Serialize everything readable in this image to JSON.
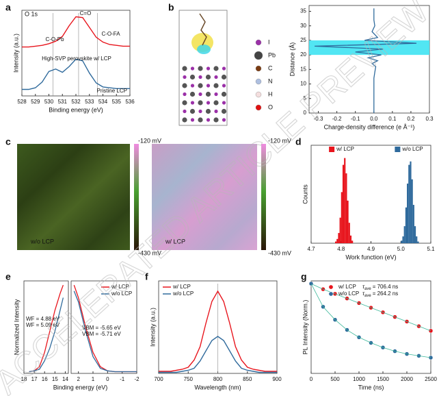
{
  "watermark": "ACCELERATED ARTICLE PREVIEW",
  "chart_data": [
    {
      "panel": "a",
      "type": "line",
      "title": "O 1s",
      "xlabel": "Binding energy (eV)",
      "ylabel": "Intensity (a.u.)",
      "xlim": [
        528,
        536
      ],
      "xticks": [
        528,
        529,
        530,
        531,
        532,
        533,
        534,
        535,
        536
      ],
      "ylim": [
        0,
        1.05
      ],
      "x": [
        528,
        528.5,
        529,
        529.5,
        530,
        530.5,
        531,
        531.5,
        532,
        532.5,
        533,
        533.5,
        534,
        534.5,
        535,
        535.5,
        536
      ],
      "series": [
        {
          "color": "#e8141c",
          "values": [
            0.6,
            0.6,
            0.61,
            0.62,
            0.64,
            0.67,
            0.73,
            0.86,
            0.97,
            0.96,
            0.84,
            0.72,
            0.66,
            0.63,
            0.62,
            0.61,
            0.61
          ]
        },
        {
          "color": "#2f6a9c",
          "values": [
            0.08,
            0.08,
            0.1,
            0.17,
            0.3,
            0.33,
            0.29,
            0.36,
            0.45,
            0.43,
            0.28,
            0.16,
            0.11,
            0.1,
            0.09,
            0.09,
            0.09
          ]
        }
      ],
      "markers": [
        530.3,
        532.2,
        533.6
      ],
      "annotations": [
        "C=O",
        "C-O-Pb",
        "C-O-FA",
        "High-SVP perovskite w/ LCP",
        "Pristine LCP"
      ]
    },
    {
      "panel": "b",
      "type": "profile",
      "structure_legend": [
        {
          "label": "I",
          "color": "#9b30a8"
        },
        {
          "label": "Pb",
          "color": "#444444"
        },
        {
          "label": "C",
          "color": "#7a3b12"
        },
        {
          "label": "N",
          "color": "#aebfe0"
        },
        {
          "label": "H",
          "color": "#f4dede"
        },
        {
          "label": "O",
          "color": "#e01010"
        }
      ],
      "xlabel": "Charge-density difference (e Å⁻¹)",
      "ylabel": "Distance (Å)",
      "xlim": [
        -0.35,
        0.3
      ],
      "xticks": [
        -0.3,
        -0.2,
        -0.1,
        {
          "value": 0,
          "label": "0.0"
        },
        0.1,
        0.2,
        0.3
      ],
      "ylim": [
        0,
        37
      ],
      "yticks": [
        0,
        5,
        10,
        15,
        20,
        25,
        30,
        35
      ],
      "band": [
        20,
        25
      ],
      "band_color": "#3fe3f2",
      "color": "#2f6a9c",
      "distance": [
        0,
        2,
        4,
        6,
        8,
        10,
        12,
        14,
        16,
        17,
        18,
        19,
        20,
        21,
        22,
        23,
        24,
        25,
        26,
        28,
        30,
        32,
        34,
        36
      ],
      "values": [
        0,
        0,
        0,
        0,
        0,
        0,
        0,
        0.005,
        0.01,
        -0.01,
        0.02,
        -0.03,
        0.04,
        -0.1,
        0.05,
        -0.32,
        0.23,
        -0.05,
        0.02,
        -0.01,
        0.005,
        0,
        0,
        0
      ]
    },
    {
      "panel": "c",
      "type": "map",
      "maps": [
        {
          "label": "w/o LCP",
          "top": "-120 mV",
          "bottom": "-430 mV"
        },
        {
          "label": "w/ LCP",
          "top": "-120 mV",
          "bottom": "-430 mV"
        }
      ]
    },
    {
      "panel": "d",
      "type": "histogram",
      "xlabel": "Work function (eV)",
      "ylabel": "Counts",
      "xlim": [
        4.7,
        5.1
      ],
      "xticks": [
        4.7,
        4.8,
        4.9,
        {
          "value": 5,
          "label": "5.0"
        },
        5.1
      ],
      "ylim": [
        0,
        115
      ],
      "series": [
        {
          "name": "w/ LCP",
          "color": "#e8141c",
          "bins": [
            4.78,
            4.785,
            4.79,
            4.795,
            4.8,
            4.805,
            4.81,
            4.815,
            4.82,
            4.825,
            4.83,
            4.835,
            4.84
          ],
          "values": [
            2,
            5,
            12,
            30,
            60,
            92,
            100,
            82,
            50,
            24,
            9,
            3
          ]
        },
        {
          "name": "w/o LCP",
          "color": "#2f6a9c",
          "bins": [
            5.0,
            5.005,
            5.01,
            5.015,
            5.02,
            5.025,
            5.03,
            5.035,
            5.04,
            5.045,
            5.05,
            5.055,
            5.06
          ],
          "values": [
            3,
            8,
            20,
            42,
            70,
            92,
            96,
            75,
            45,
            20,
            8,
            2
          ]
        }
      ]
    },
    {
      "panel": "e",
      "type": "line",
      "xlabel": "Binding energy (eV)",
      "ylabel": "Normalized Intensity",
      "ylim": [
        0,
        1.1
      ],
      "legend": "upper right",
      "segments": [
        {
          "xlim": [
            18,
            13.7
          ],
          "xticks": [
            18,
            17,
            16,
            15,
            14
          ],
          "x": [
            17.5,
            17,
            16.5,
            16,
            15.5,
            15,
            14.5,
            14.2
          ]
        },
        {
          "xlim": [
            2.5,
            -2
          ],
          "xticks": [
            2,
            1,
            0,
            -1,
            -2
          ],
          "x": [
            2.3,
            2,
            1.5,
            1,
            0.5,
            0,
            -0.5,
            -1,
            -2
          ]
        }
      ],
      "series": [
        {
          "name": "w/ LCP",
          "color": "#e8141c",
          "segments": [
            [
              0.02,
              0.03,
              0.08,
              0.25,
              0.5,
              0.75,
              0.95,
              1.05
            ],
            [
              1.05,
              0.9,
              0.55,
              0.25,
              0.08,
              0.03,
              0.02,
              0.02,
              0.02
            ]
          ]
        },
        {
          "name": "w/o LCP",
          "color": "#2f6a9c",
          "segments": [
            [
              0.02,
              0.03,
              0.05,
              0.15,
              0.3,
              0.5,
              0.75,
              0.9
            ],
            [
              0.98,
              0.85,
              0.5,
              0.2,
              0.06,
              0.03,
              0.02,
              0.02,
              0.02
            ]
          ]
        }
      ],
      "annotations": [
        {
          "text": "WF = 4.88 eV",
          "color": "#e8141c"
        },
        {
          "text": "WF = 5.09 eV",
          "color": "#2f6a9c"
        },
        {
          "text": "VBM = -5.65 eV",
          "color": "#e8141c"
        },
        {
          "text": "VBM = -5.71 eV",
          "color": "#2f6a9c"
        }
      ]
    },
    {
      "panel": "f",
      "type": "line",
      "xlabel": "Wavelength (nm)",
      "ylabel": "Intensity (a.u.)",
      "legend": "upper left",
      "xlim": [
        700,
        900
      ],
      "xticks": [
        700,
        750,
        800,
        850,
        900
      ],
      "ylim": [
        0,
        0.9
      ],
      "x": [
        700,
        710,
        720,
        730,
        740,
        750,
        760,
        770,
        780,
        790,
        800,
        810,
        820,
        830,
        840,
        850,
        860,
        870,
        880,
        890,
        900
      ],
      "series": [
        {
          "name": "w/ LCP",
          "color": "#e8141c",
          "values": [
            0.02,
            0.02,
            0.02,
            0.03,
            0.04,
            0.06,
            0.13,
            0.26,
            0.49,
            0.7,
            0.8,
            0.7,
            0.49,
            0.26,
            0.13,
            0.06,
            0.04,
            0.03,
            0.02,
            0.02,
            0.02
          ]
        },
        {
          "name": "w/o LCP",
          "color": "#2f6a9c",
          "values": [
            0.01,
            0.01,
            0.01,
            0.01,
            0.02,
            0.03,
            0.05,
            0.12,
            0.22,
            0.32,
            0.36,
            0.32,
            0.22,
            0.12,
            0.05,
            0.03,
            0.02,
            0.01,
            0.01,
            0.01,
            0.01
          ]
        }
      ],
      "markers": [
        800
      ]
    },
    {
      "panel": "g",
      "type": "scatter",
      "xlabel": "Time (ns)",
      "ylabel": "PL Intensity (Norm.)",
      "legend": "upper right",
      "xlim": [
        0,
        2500
      ],
      "xticks": [
        0,
        500,
        1000,
        1500,
        2000,
        2500
      ],
      "ylim": [
        0,
        1
      ],
      "x": [
        0,
        250,
        500,
        750,
        1000,
        1250,
        1500,
        1750,
        2000,
        2250,
        2500
      ],
      "series": [
        {
          "name": "w/ LCP",
          "color": "#e8141c",
          "lifetime": {
            "symbol": "τ",
            "sub": "ave",
            "text": "= 706.4 ns"
          },
          "values": [
            0.97,
            0.91,
            0.86,
            0.81,
            0.76,
            0.71,
            0.66,
            0.61,
            0.56,
            0.51,
            0.46
          ]
        },
        {
          "name": "w/o LCP",
          "color": "#2f6a9c",
          "lifetime": {
            "symbol": "τ",
            "sub": "ave",
            "text": "= 264.2 ns"
          },
          "values": [
            0.97,
            0.72,
            0.58,
            0.47,
            0.39,
            0.33,
            0.28,
            0.24,
            0.21,
            0.19,
            0.17
          ]
        }
      ]
    }
  ]
}
